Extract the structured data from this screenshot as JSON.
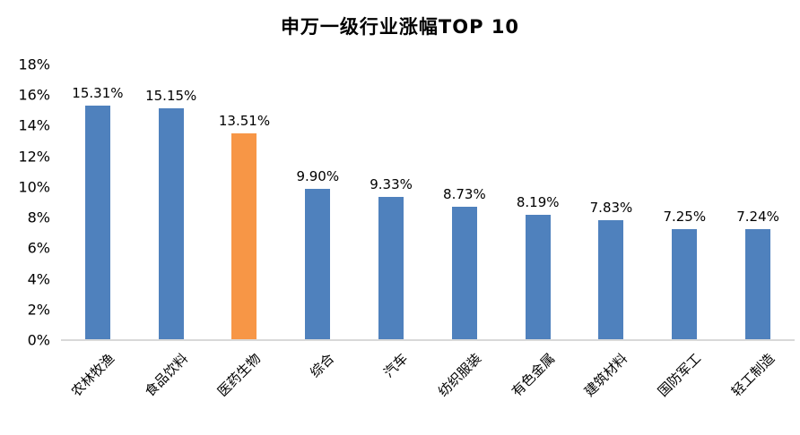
{
  "chart_data": {
    "type": "bar",
    "title": "申万一级行业涨幅TOP 10",
    "categories": [
      "农林牧渔",
      "食品饮料",
      "医药生物",
      "综合",
      "汽车",
      "纺织服装",
      "有色金属",
      "建筑材料",
      "国防军工",
      "轻工制造"
    ],
    "values": [
      15.31,
      15.15,
      13.51,
      9.9,
      9.33,
      8.73,
      8.19,
      7.83,
      7.25,
      7.24
    ],
    "value_labels": [
      "15.31%",
      "15.15%",
      "13.51%",
      "9.90%",
      "9.33%",
      "8.73%",
      "8.19%",
      "7.83%",
      "7.25%",
      "7.24%"
    ],
    "y_ticks": [
      "18%",
      "16%",
      "14%",
      "12%",
      "10%",
      "8%",
      "6%",
      "4%",
      "2%",
      "0%"
    ],
    "ylim": [
      0,
      18
    ],
    "xlabel": "",
    "ylabel": "",
    "grid": false,
    "legend": "none",
    "highlight_index": 2,
    "x_label_rotation_deg": 45,
    "colors": {
      "bar": "#4F81BD",
      "highlight": "#F79646",
      "baseline": "#D9D9D9",
      "text": "#000000",
      "background": "#FFFFFF"
    }
  }
}
